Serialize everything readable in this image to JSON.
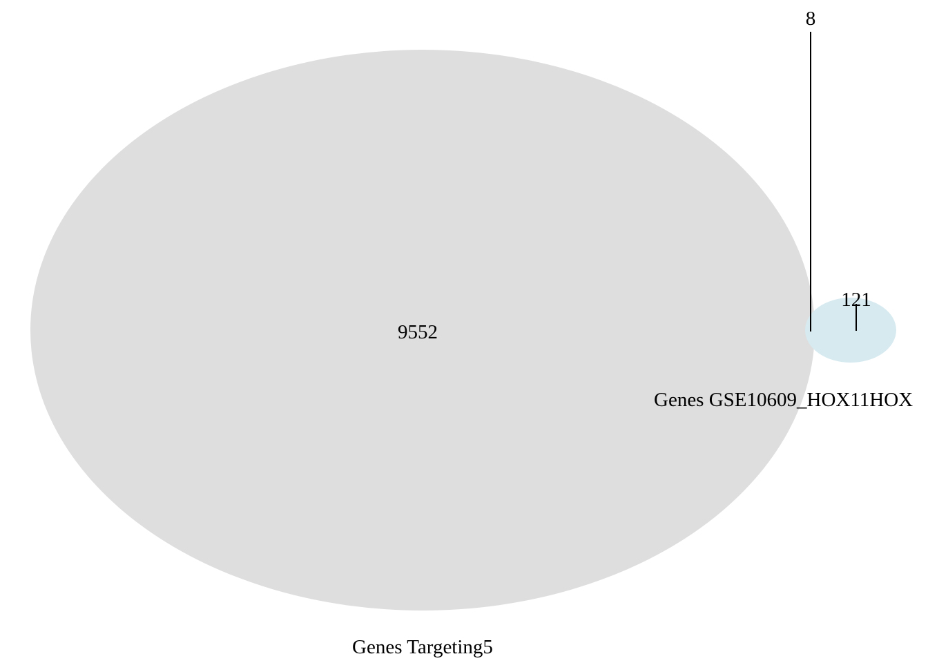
{
  "diagram": {
    "type": "venn",
    "sets": [
      {
        "name": "Genes Targeting5",
        "only_count": "9552",
        "fill_color": "#dedede"
      },
      {
        "name": "Genes GSE10609_HOX11HOX",
        "only_count": "121",
        "fill_color": "#d6eaf0"
      }
    ],
    "intersection": {
      "count": "8"
    },
    "leader_line_color": "#000000"
  }
}
